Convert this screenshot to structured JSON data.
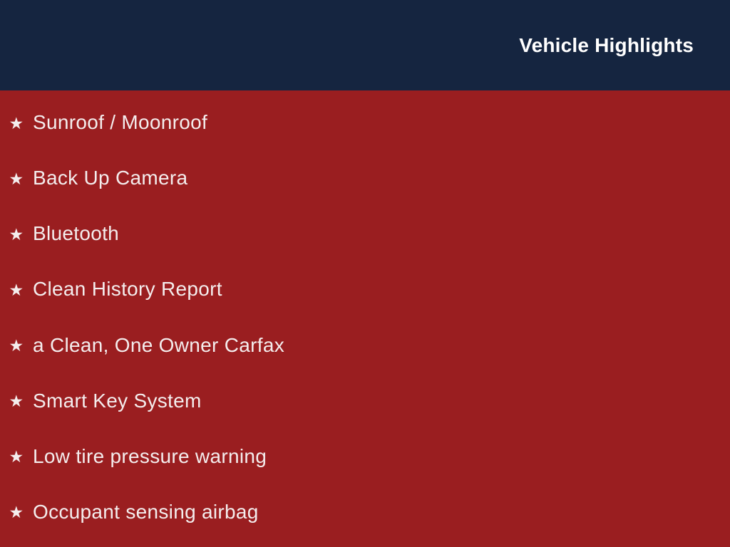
{
  "colors": {
    "header_bg": "#152540",
    "body_bg": "#9A1E20",
    "title_color": "#FFFFFF",
    "text_color": "#F4EDED"
  },
  "header": {
    "title": "Vehicle Highlights"
  },
  "highlights": {
    "bullet_icon": "★",
    "items": [
      {
        "label": "Sunroof / Moonroof"
      },
      {
        "label": "Back Up Camera"
      },
      {
        "label": "Bluetooth"
      },
      {
        "label": "Clean History Report"
      },
      {
        "label": "a Clean, One Owner Carfax"
      },
      {
        "label": "Smart Key System"
      },
      {
        "label": "Low tire pressure warning"
      },
      {
        "label": "Occupant sensing airbag"
      }
    ]
  }
}
